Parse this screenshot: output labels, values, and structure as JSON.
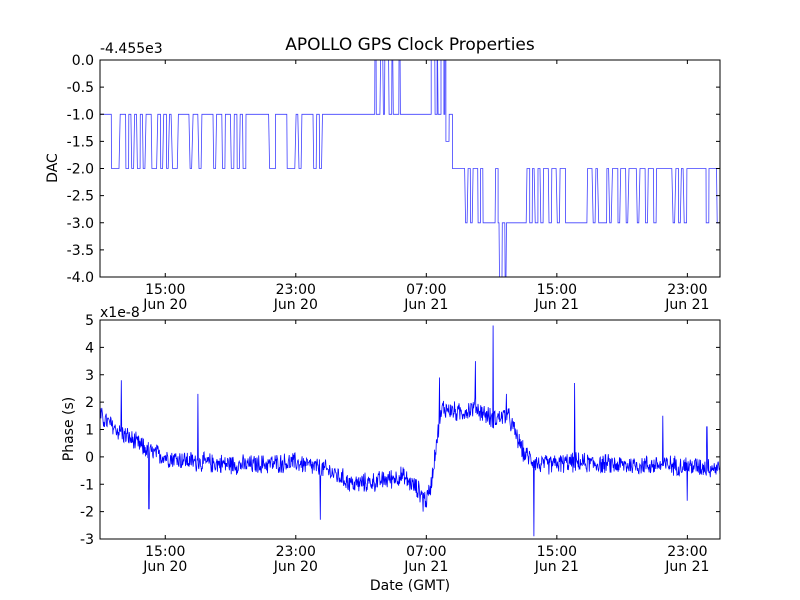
{
  "figure": {
    "title": "APOLLO GPS Clock Properties",
    "xlabel": "Date (GMT)"
  },
  "chart_data": [
    {
      "type": "line",
      "ylabel": "DAC",
      "offset_text": "-4.455e3",
      "ylim": [
        -4.0,
        0.0
      ],
      "yticks": [
        0.0,
        -0.5,
        -1.0,
        -1.5,
        -2.0,
        -2.5,
        -3.0,
        -3.5,
        -4.0
      ],
      "ytick_labels": [
        "0.0",
        "-0.5",
        "-1.0",
        "-1.5",
        "-2.0",
        "-2.5",
        "-3.0",
        "-3.5",
        "-4.0"
      ],
      "xlim_hours": [
        11.0,
        49.0
      ],
      "xticks_hours": [
        15,
        23,
        31,
        39,
        47
      ],
      "xtick_labels": [
        [
          "15:00",
          "Jun 20"
        ],
        [
          "23:00",
          "Jun 20"
        ],
        [
          "07:00",
          "Jun 21"
        ],
        [
          "15:00",
          "Jun 21"
        ],
        [
          "23:00",
          "Jun 21"
        ]
      ],
      "line_color": "#4040ff",
      "segments": [
        {
          "from": 11.0,
          "to": 14.0,
          "levels": [
            -1.0,
            -2.0
          ],
          "bias": 0.7,
          "switches": 16
        },
        {
          "from": 14.0,
          "to": 25.0,
          "levels": [
            -1.0,
            -2.0
          ],
          "bias": 0.65,
          "switches": 60
        },
        {
          "from": 25.0,
          "to": 27.5,
          "levels": [
            -1.0
          ],
          "bias": 1.0,
          "switches": 0
        },
        {
          "from": 27.5,
          "to": 29.5,
          "levels": [
            -1.0,
            0.0
          ],
          "bias": 0.55,
          "switches": 22
        },
        {
          "from": 29.5,
          "to": 31.3,
          "levels": [
            -1.0
          ],
          "bias": 1.0,
          "switches": 0
        },
        {
          "from": 31.3,
          "to": 32.2,
          "levels": [
            -1.0,
            0.0
          ],
          "bias": 0.5,
          "switches": 14
        },
        {
          "from": 32.2,
          "to": 32.6,
          "levels": [
            -1.0,
            -1.5
          ],
          "bias": 0.5,
          "switches": 3
        },
        {
          "from": 32.6,
          "to": 33.1,
          "levels": [
            -2.0
          ],
          "bias": 1.0,
          "switches": 0
        },
        {
          "from": 33.1,
          "to": 35.4,
          "levels": [
            -3.0,
            -2.0
          ],
          "bias": 0.6,
          "switches": 14
        },
        {
          "from": 35.4,
          "to": 36.0,
          "levels": [
            -3.0,
            -4.0
          ],
          "bias": 0.6,
          "switches": 6
        },
        {
          "from": 36.0,
          "to": 37.0,
          "levels": [
            -3.0
          ],
          "bias": 1.0,
          "switches": 0
        },
        {
          "from": 37.0,
          "to": 49.0,
          "levels": [
            -2.0,
            -3.0
          ],
          "bias": 0.6,
          "switches": 70
        }
      ]
    },
    {
      "type": "line",
      "ylabel": "Phase (s)",
      "offset_text": "x1e-8",
      "ylim": [
        -3,
        5
      ],
      "yticks": [
        5,
        4,
        3,
        2,
        1,
        0,
        -1,
        -2,
        -3
      ],
      "ytick_labels": [
        "5",
        "4",
        "3",
        "2",
        "1",
        "0",
        "-1",
        "-2",
        "-3"
      ],
      "xlim_hours": [
        11.0,
        49.0
      ],
      "xticks_hours": [
        15,
        23,
        31,
        39,
        47
      ],
      "xtick_labels": [
        [
          "15:00",
          "Jun 20"
        ],
        [
          "23:00",
          "Jun 20"
        ],
        [
          "07:00",
          "Jun 21"
        ],
        [
          "15:00",
          "Jun 21"
        ],
        [
          "23:00",
          "Jun 21"
        ]
      ],
      "line_color": "#0000ff",
      "trend_points": [
        [
          11.0,
          1.5
        ],
        [
          12.0,
          1.0
        ],
        [
          13.0,
          0.6
        ],
        [
          14.0,
          0.2
        ],
        [
          15.0,
          0.0
        ],
        [
          17.0,
          -0.2
        ],
        [
          20.0,
          -0.3
        ],
        [
          23.0,
          -0.2
        ],
        [
          25.0,
          -0.5
        ],
        [
          26.5,
          -1.0
        ],
        [
          28.0,
          -0.9
        ],
        [
          29.5,
          -0.7
        ],
        [
          30.5,
          -1.2
        ],
        [
          31.0,
          -1.6
        ],
        [
          31.3,
          -1.0
        ],
        [
          31.6,
          0.5
        ],
        [
          32.0,
          1.8
        ],
        [
          33.0,
          1.6
        ],
        [
          34.0,
          1.8
        ],
        [
          35.0,
          1.4
        ],
        [
          36.0,
          1.5
        ],
        [
          36.5,
          0.8
        ],
        [
          37.0,
          0.1
        ],
        [
          38.0,
          -0.3
        ],
        [
          40.0,
          -0.2
        ],
        [
          43.0,
          -0.3
        ],
        [
          46.0,
          -0.3
        ],
        [
          49.0,
          -0.4
        ]
      ],
      "noise_amplitude": 0.35,
      "sample_count": 1400,
      "spikes": [
        [
          12.3,
          2.8
        ],
        [
          14.0,
          -1.9
        ],
        [
          17.0,
          2.3
        ],
        [
          24.5,
          -2.3
        ],
        [
          30.8,
          -2.0
        ],
        [
          31.8,
          2.9
        ],
        [
          34.0,
          3.5
        ],
        [
          35.1,
          4.8
        ],
        [
          35.9,
          2.3
        ],
        [
          37.6,
          -2.9
        ],
        [
          40.1,
          2.7
        ],
        [
          45.5,
          1.5
        ],
        [
          47.0,
          -1.6
        ],
        [
          48.2,
          1.1
        ]
      ]
    }
  ]
}
